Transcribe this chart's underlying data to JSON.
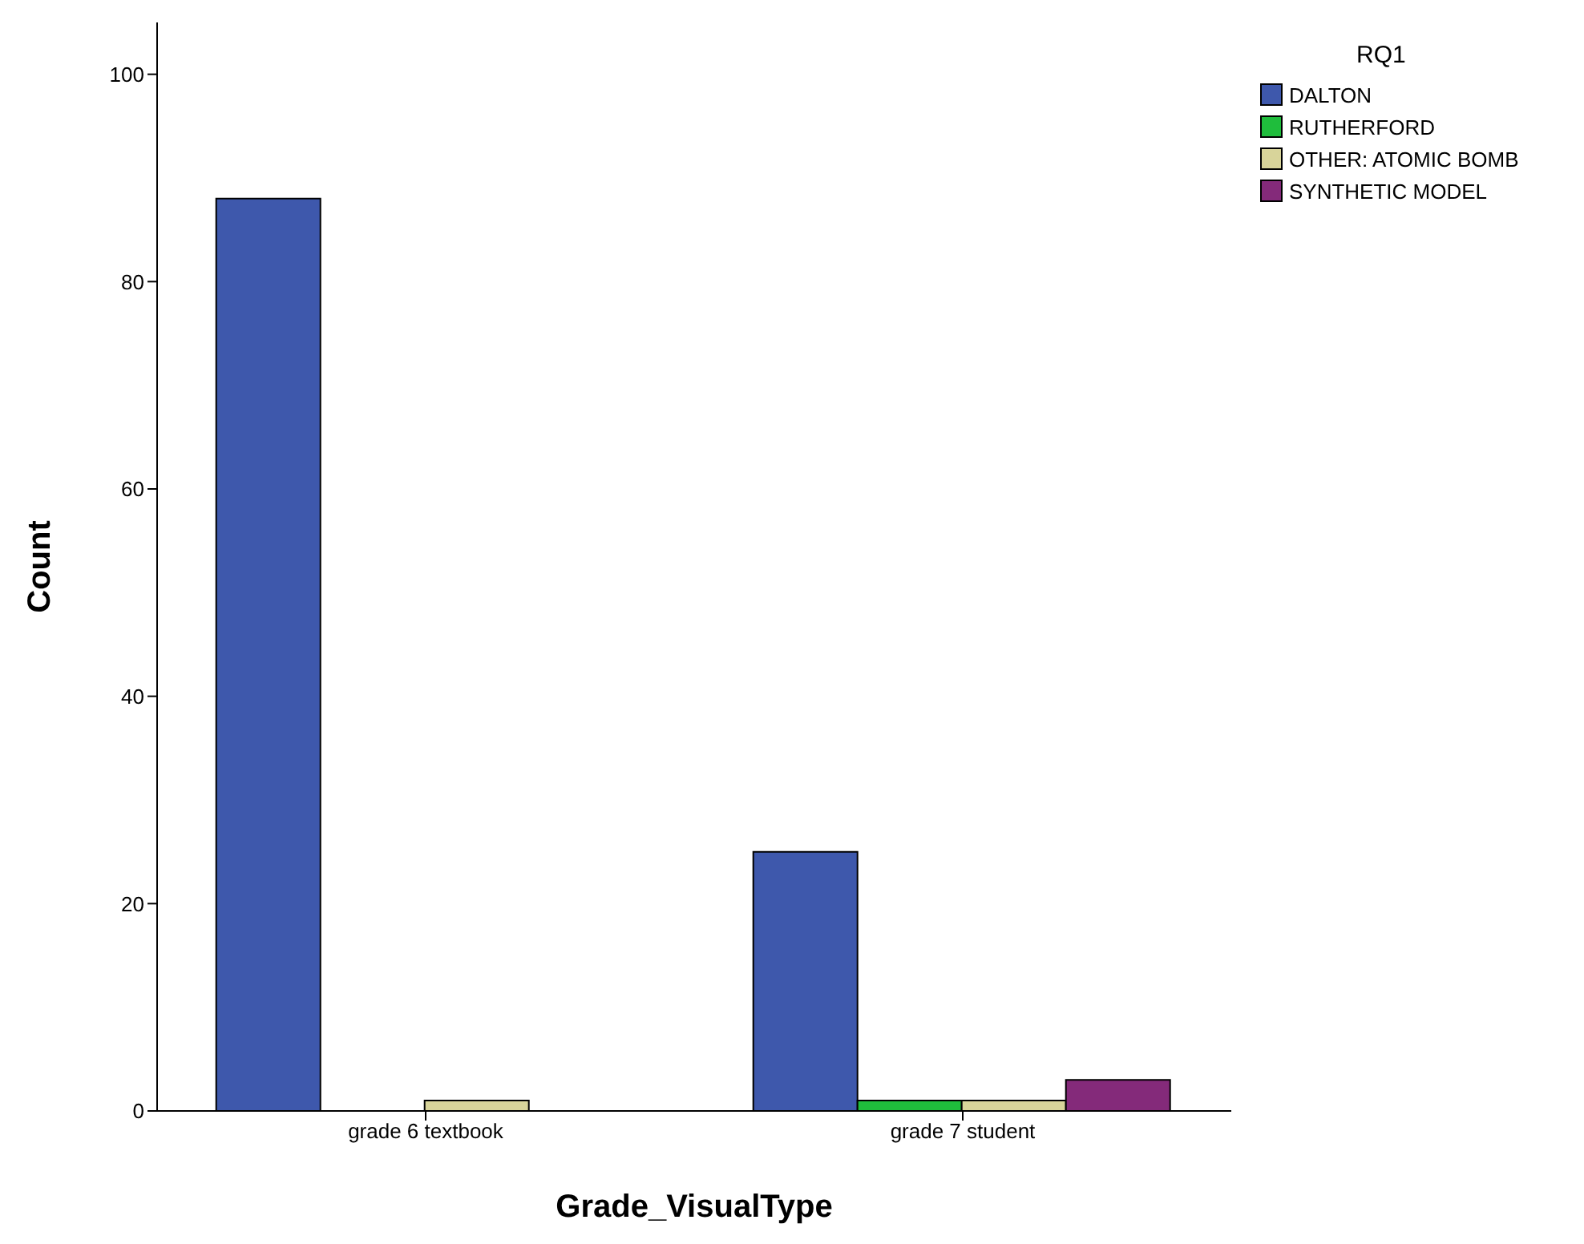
{
  "chart_data": {
    "type": "bar",
    "xlabel": "Grade_VisualType",
    "ylabel": "Count",
    "legend_title": "RQ1",
    "categories": [
      "grade 6 textbook",
      "grade 7 student"
    ],
    "series": [
      {
        "name": "DALTON",
        "color": "#3e58ac",
        "values": [
          88,
          25
        ]
      },
      {
        "name": "RUTHERFORD",
        "color": "#1fbd3c",
        "values": [
          0,
          1
        ]
      },
      {
        "name": "OTHER: ATOMIC BOMB",
        "color": "#d8d49a",
        "values": [
          1,
          1
        ]
      },
      {
        "name": "SYNTHETIC MODEL",
        "color": "#842a7a",
        "values": [
          0,
          3
        ]
      }
    ],
    "ylim": [
      0,
      105
    ],
    "yticks": [
      0,
      20,
      40,
      60,
      80,
      100
    ],
    "grid": false,
    "legend": "top right"
  }
}
